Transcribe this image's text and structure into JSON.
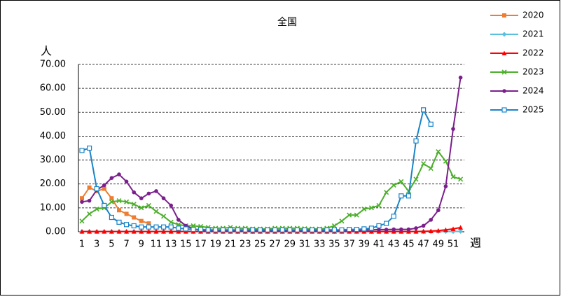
{
  "chart_data": {
    "type": "line",
    "title": "全国",
    "y_label": "人",
    "x_label": "週",
    "categories": [
      "1",
      null,
      "3",
      null,
      "5",
      null,
      "7",
      null,
      "9",
      null,
      "11",
      null,
      "13",
      null,
      "15",
      null,
      "17",
      null,
      "19",
      null,
      "21",
      null,
      "23",
      null,
      "25",
      null,
      "27",
      null,
      "29",
      null,
      "31",
      null,
      "33",
      null,
      "35",
      null,
      "37",
      null,
      "39",
      null,
      "41",
      null,
      "43",
      null,
      "45",
      null,
      "47",
      null,
      "49",
      null,
      "51",
      null
    ],
    "ylim": [
      0,
      70
    ],
    "yticks": [
      {
        "value": 0,
        "label": "0.00"
      },
      {
        "value": 10,
        "label": "10.00"
      },
      {
        "value": 20,
        "label": "20.00"
      },
      {
        "value": 30,
        "label": "30.00"
      },
      {
        "value": 40,
        "label": "40.00"
      },
      {
        "value": 50,
        "label": "50.00"
      },
      {
        "value": 60,
        "label": "60.00"
      },
      {
        "value": 70,
        "label": "70.00"
      }
    ],
    "grid": true,
    "legend": "right",
    "series": [
      {
        "name": "2020",
        "color": "#ed7d31",
        "marker": "square",
        "values": [
          14,
          18.5,
          17,
          18,
          14,
          9,
          7.5,
          6,
          4.5,
          3.5,
          null,
          null,
          null,
          null,
          null,
          null,
          null,
          null,
          null,
          null,
          null,
          null,
          null,
          null,
          null,
          null,
          null,
          null,
          null,
          null,
          null,
          null,
          null,
          null,
          null,
          null,
          null,
          null,
          null,
          null,
          null,
          null,
          null,
          null,
          null,
          null,
          null,
          null,
          null,
          null,
          null,
          null
        ]
      },
      {
        "name": "2021",
        "color": "#5bc0de",
        "marker": "diamond",
        "values": [
          0.1,
          0.1,
          0.1,
          0.1,
          0.1,
          0.1,
          0.1,
          0.1,
          0.1,
          0.1,
          0.1,
          0.1,
          0.1,
          0.1,
          0.1,
          0.1,
          0.1,
          0.1,
          0.1,
          0.1,
          0.1,
          0.1,
          0.1,
          0.1,
          0.1,
          0.1,
          0.1,
          0.1,
          0.1,
          0.1,
          0.1,
          0.1,
          0.1,
          0.1,
          0.1,
          0.1,
          0.1,
          0.1,
          0.1,
          0.1,
          0.1,
          0.1,
          0.1,
          0.1,
          0.1,
          0.1,
          0.1,
          0.1,
          0.1,
          0.1,
          0.1,
          0.2
        ]
      },
      {
        "name": "2022",
        "color": "#ff0000",
        "marker": "triangle",
        "values": [
          0.1,
          0.1,
          0.1,
          0.1,
          0.1,
          0.1,
          0.1,
          0.1,
          0.1,
          0.1,
          0.1,
          0.1,
          0.1,
          0.1,
          0.1,
          0.1,
          0.1,
          0.1,
          0.1,
          0.1,
          0.1,
          0.1,
          0.1,
          0.1,
          0.1,
          0.1,
          0.1,
          0.1,
          0.1,
          0.1,
          0.1,
          0.1,
          0.1,
          0.1,
          0.1,
          0.1,
          0.1,
          0.1,
          0.1,
          0.1,
          0.1,
          0.1,
          0.1,
          0.1,
          0.1,
          0.1,
          0.2,
          0.3,
          0.5,
          0.8,
          1.2,
          1.8
        ]
      },
      {
        "name": "2023",
        "color": "#4cae2c",
        "marker": "x",
        "values": [
          4.5,
          7.5,
          9.5,
          10,
          12.5,
          13,
          12.5,
          11.5,
          10,
          11,
          8.5,
          6.5,
          4,
          3,
          2.5,
          2.5,
          2.2,
          1.8,
          1.5,
          1.5,
          1.8,
          1.5,
          1.5,
          1.2,
          1.2,
          1.2,
          1.5,
          1.5,
          1.5,
          1.5,
          1.3,
          1.2,
          1.2,
          1.5,
          2.5,
          4.5,
          7,
          7,
          9.5,
          10,
          11,
          16.5,
          19.5,
          21,
          17,
          22,
          28.5,
          26.5,
          33.5,
          29.5,
          23,
          22
        ]
      },
      {
        "name": "2024",
        "color": "#7b1f8c",
        "marker": "circle",
        "values": [
          12.5,
          13,
          17.5,
          19.5,
          22.5,
          24,
          21,
          16.5,
          14,
          16,
          17,
          14,
          11,
          5,
          2.5,
          1.2,
          0.6,
          0.5,
          0.5,
          0.5,
          0.5,
          0.5,
          0.5,
          0.5,
          0.5,
          0.5,
          0.5,
          0.5,
          0.5,
          0.5,
          0.5,
          0.5,
          0.5,
          0.5,
          0.5,
          0.5,
          0.5,
          0.6,
          0.7,
          0.8,
          0.9,
          0.9,
          1,
          1,
          1,
          1.5,
          2.5,
          5,
          9,
          19,
          43,
          64.5
        ]
      },
      {
        "name": "2025",
        "color": "#1a84c7",
        "marker": "square-open",
        "values": [
          34,
          35,
          18,
          11,
          6,
          4,
          3,
          2.5,
          2,
          2,
          2,
          2,
          2,
          1.5,
          1.2,
          1,
          1,
          0.8,
          0.8,
          0.8,
          0.8,
          0.8,
          0.8,
          0.8,
          0.8,
          0.8,
          0.8,
          0.8,
          0.8,
          0.8,
          0.8,
          0.8,
          0.8,
          0.8,
          0.8,
          0.8,
          1,
          1,
          1.2,
          1.5,
          2.5,
          3.5,
          6.5,
          15,
          15,
          38,
          51,
          45,
          null,
          null,
          null,
          null
        ]
      }
    ]
  }
}
